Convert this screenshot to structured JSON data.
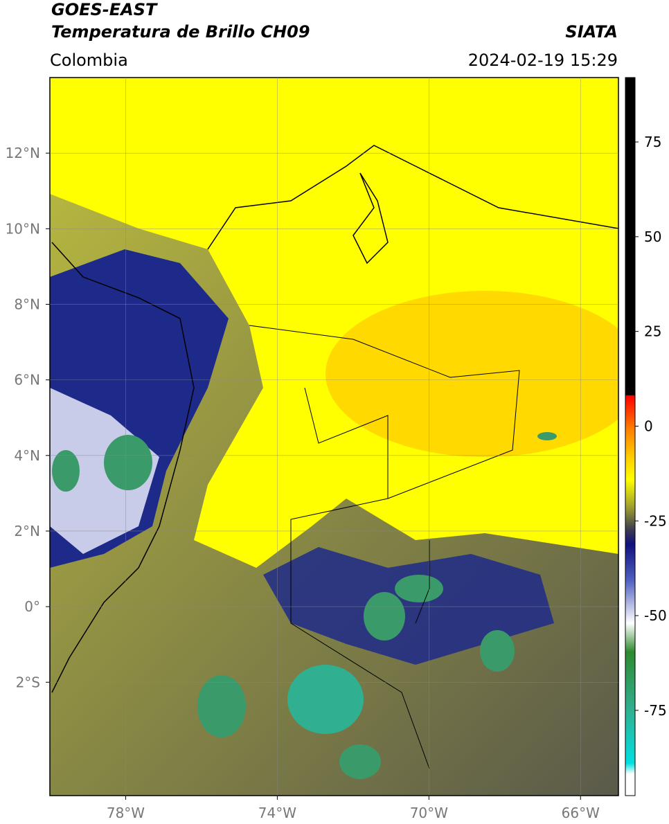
{
  "header": {
    "satellite": "GOES-EAST",
    "product": "Temperatura de Brillo CH09",
    "agency": "SIATA",
    "region": "Colombia",
    "datetime": "2024-02-19 15:29"
  },
  "map": {
    "xlim": [
      -80,
      -65
    ],
    "ylim": [
      -5,
      14
    ],
    "xticks": [
      {
        "value": -78,
        "label": "78°W"
      },
      {
        "value": -74,
        "label": "74°W"
      },
      {
        "value": -70,
        "label": "70°W"
      },
      {
        "value": -66,
        "label": "66°W"
      }
    ],
    "yticks": [
      {
        "value": -2,
        "label": "2°S"
      },
      {
        "value": 0,
        "label": "0°"
      },
      {
        "value": 2,
        "label": "2°N"
      },
      {
        "value": 4,
        "label": "4°N"
      },
      {
        "value": 6,
        "label": "6°N"
      },
      {
        "value": 8,
        "label": "8°N"
      },
      {
        "value": 10,
        "label": "10°N"
      },
      {
        "value": 12,
        "label": "12°N"
      }
    ],
    "grid": true
  },
  "colorbar": {
    "clim": [
      -97.5,
      92
    ],
    "ticks": [
      75,
      50,
      25,
      0,
      -25,
      -50,
      -75
    ]
  }
}
